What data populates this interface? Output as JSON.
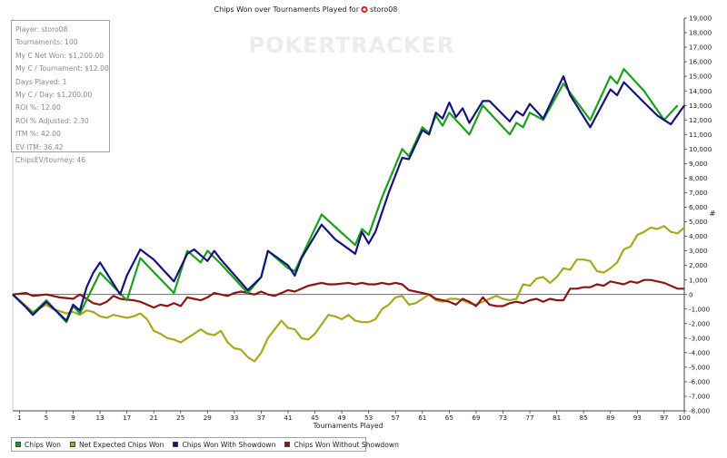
{
  "chart_data": {
    "type": "line",
    "title": "Chips Won over Tournaments Played for",
    "player_name": "storo08",
    "watermark": "POKERTRACKER",
    "xlabel": "Tournaments Played",
    "ylabel": "#",
    "x_ticks": [
      "1",
      "5",
      "9",
      "13",
      "17",
      "21",
      "25",
      "29",
      "33",
      "37",
      "41",
      "45",
      "49",
      "53",
      "57",
      "61",
      "65",
      "69",
      "73",
      "77",
      "81",
      "85",
      "89",
      "93",
      "97",
      "100"
    ],
    "y_ticks": [
      "19,000",
      "18,000",
      "17,000",
      "16,000",
      "15,000",
      "14,000",
      "13,000",
      "12,000",
      "11,000",
      "10,000",
      "9,000",
      "8,000",
      "7,000",
      "6,000",
      "5,000",
      "4,000",
      "3,000",
      "2,000",
      "1,000",
      "0",
      "-1,000",
      "-2,000",
      "-3,000",
      "-4,000",
      "-5,000",
      "-6,000",
      "-7,000",
      "-8,000"
    ],
    "xlim": [
      0,
      100
    ],
    "ylim": [
      -8000,
      19000
    ],
    "grid": false,
    "legend_position": "bottom-left",
    "series": [
      {
        "name": "Chips Won",
        "color": "#1aa01a",
        "points": [
          [
            0,
            0
          ],
          [
            3,
            -1300
          ],
          [
            5,
            -400
          ],
          [
            8,
            -1900
          ],
          [
            9,
            -800
          ],
          [
            10,
            -1300
          ],
          [
            13,
            1500
          ],
          [
            17,
            -400
          ],
          [
            19,
            2500
          ],
          [
            24,
            100
          ],
          [
            26,
            3000
          ],
          [
            28,
            2200
          ],
          [
            29,
            3000
          ],
          [
            31,
            2100
          ],
          [
            35,
            100
          ],
          [
            37,
            1200
          ],
          [
            38,
            3000
          ],
          [
            41,
            1800
          ],
          [
            42,
            1600
          ],
          [
            46,
            5500
          ],
          [
            51,
            3400
          ],
          [
            52,
            4500
          ],
          [
            53,
            4100
          ],
          [
            55,
            6700
          ],
          [
            58,
            10000
          ],
          [
            59,
            9500
          ],
          [
            61,
            11500
          ],
          [
            62,
            11100
          ],
          [
            63,
            12300
          ],
          [
            64,
            11600
          ],
          [
            65,
            12500
          ],
          [
            66,
            12000
          ],
          [
            68,
            11000
          ],
          [
            70,
            13000
          ],
          [
            72,
            12000
          ],
          [
            74,
            11000
          ],
          [
            75,
            11800
          ],
          [
            76,
            11500
          ],
          [
            77,
            12500
          ],
          [
            79,
            12000
          ],
          [
            82,
            14500
          ],
          [
            86,
            12000
          ],
          [
            89,
            15000
          ],
          [
            90,
            14500
          ],
          [
            91,
            15500
          ],
          [
            94,
            14000
          ],
          [
            97,
            12000
          ],
          [
            99,
            13000
          ]
        ]
      },
      {
        "name": "Net Expected Chips Won",
        "color": "#a8a81e",
        "points": [
          [
            0,
            0
          ],
          [
            2,
            -800
          ],
          [
            3,
            -1200
          ],
          [
            5,
            -700
          ],
          [
            6,
            -1000
          ],
          [
            8,
            -1300
          ],
          [
            9,
            -1200
          ],
          [
            10,
            -1400
          ],
          [
            11,
            -1100
          ],
          [
            12,
            -1200
          ],
          [
            13,
            -1500
          ],
          [
            14,
            -1600
          ],
          [
            15,
            -1400
          ],
          [
            17,
            -1600
          ],
          [
            18,
            -1500
          ],
          [
            19,
            -1300
          ],
          [
            20,
            -1700
          ],
          [
            21,
            -2500
          ],
          [
            22,
            -2700
          ],
          [
            23,
            -3000
          ],
          [
            24,
            -3100
          ],
          [
            25,
            -3300
          ],
          [
            27,
            -2700
          ],
          [
            28,
            -2400
          ],
          [
            29,
            -2700
          ],
          [
            30,
            -2800
          ],
          [
            31,
            -2500
          ],
          [
            32,
            -3300
          ],
          [
            33,
            -3700
          ],
          [
            34,
            -3800
          ],
          [
            35,
            -4300
          ],
          [
            36,
            -4600
          ],
          [
            37,
            -4000
          ],
          [
            38,
            -3000
          ],
          [
            39,
            -2400
          ],
          [
            40,
            -1800
          ],
          [
            41,
            -2300
          ],
          [
            42,
            -2400
          ],
          [
            43,
            -3000
          ],
          [
            44,
            -3100
          ],
          [
            45,
            -2700
          ],
          [
            47,
            -1400
          ],
          [
            48,
            -1500
          ],
          [
            49,
            -1700
          ],
          [
            50,
            -1400
          ],
          [
            51,
            -1800
          ],
          [
            52,
            -1900
          ],
          [
            53,
            -1900
          ],
          [
            54,
            -1700
          ],
          [
            55,
            -1000
          ],
          [
            56,
            -700
          ],
          [
            57,
            -200
          ],
          [
            58,
            -100
          ],
          [
            59,
            -700
          ],
          [
            60,
            -600
          ],
          [
            61,
            -300
          ],
          [
            62,
            0
          ],
          [
            63,
            -400
          ],
          [
            64,
            -500
          ],
          [
            65,
            -300
          ],
          [
            66,
            -300
          ],
          [
            67,
            -400
          ],
          [
            68,
            -600
          ],
          [
            69,
            -700
          ],
          [
            70,
            -500
          ],
          [
            71,
            -300
          ],
          [
            72,
            -100
          ],
          [
            73,
            -300
          ],
          [
            74,
            -400
          ],
          [
            75,
            -300
          ],
          [
            76,
            700
          ],
          [
            77,
            600
          ],
          [
            78,
            1100
          ],
          [
            79,
            1200
          ],
          [
            80,
            800
          ],
          [
            81,
            1200
          ],
          [
            82,
            1800
          ],
          [
            83,
            1700
          ],
          [
            84,
            2400
          ],
          [
            85,
            2400
          ],
          [
            86,
            2300
          ],
          [
            87,
            1600
          ],
          [
            88,
            1500
          ],
          [
            89,
            1800
          ],
          [
            90,
            2200
          ],
          [
            91,
            3100
          ],
          [
            92,
            3300
          ],
          [
            93,
            4100
          ],
          [
            94,
            4300
          ],
          [
            95,
            4600
          ],
          [
            96,
            4500
          ],
          [
            97,
            4700
          ],
          [
            98,
            4300
          ],
          [
            99,
            4200
          ],
          [
            100,
            4600
          ]
        ]
      },
      {
        "name": "Chips Won With Showdown",
        "color": "#14147a",
        "points": [
          [
            0,
            0
          ],
          [
            2,
            -900
          ],
          [
            3,
            -1400
          ],
          [
            5,
            -500
          ],
          [
            8,
            -1800
          ],
          [
            9,
            -700
          ],
          [
            10,
            -1100
          ],
          [
            11,
            500
          ],
          [
            12,
            1500
          ],
          [
            13,
            2200
          ],
          [
            16,
            0
          ],
          [
            17,
            1300
          ],
          [
            19,
            3100
          ],
          [
            21,
            2400
          ],
          [
            23,
            1400
          ],
          [
            24,
            900
          ],
          [
            26,
            2800
          ],
          [
            27,
            3100
          ],
          [
            29,
            2300
          ],
          [
            30,
            3000
          ],
          [
            31,
            2400
          ],
          [
            35,
            300
          ],
          [
            37,
            1200
          ],
          [
            38,
            3000
          ],
          [
            41,
            2000
          ],
          [
            42,
            1300
          ],
          [
            43,
            2500
          ],
          [
            46,
            4800
          ],
          [
            48,
            3800
          ],
          [
            51,
            2800
          ],
          [
            52,
            4300
          ],
          [
            53,
            3500
          ],
          [
            54,
            4300
          ],
          [
            56,
            7000
          ],
          [
            58,
            9400
          ],
          [
            59,
            9300
          ],
          [
            61,
            11300
          ],
          [
            62,
            11000
          ],
          [
            63,
            12500
          ],
          [
            64,
            12100
          ],
          [
            65,
            13200
          ],
          [
            66,
            12200
          ],
          [
            67,
            12800
          ],
          [
            68,
            11800
          ],
          [
            70,
            13300
          ],
          [
            71,
            13300
          ],
          [
            74,
            11900
          ],
          [
            75,
            12600
          ],
          [
            76,
            12300
          ],
          [
            77,
            13100
          ],
          [
            79,
            12100
          ],
          [
            82,
            15000
          ],
          [
            83,
            13700
          ],
          [
            86,
            11500
          ],
          [
            89,
            14100
          ],
          [
            90,
            13700
          ],
          [
            91,
            14600
          ],
          [
            94,
            13200
          ],
          [
            96,
            12300
          ],
          [
            98,
            11700
          ],
          [
            100,
            13000
          ]
        ]
      },
      {
        "name": "Chips Won Without Showdown",
        "color": "#8c1414",
        "points": [
          [
            0,
            0
          ],
          [
            2,
            100
          ],
          [
            3,
            -100
          ],
          [
            5,
            0
          ],
          [
            7,
            -200
          ],
          [
            9,
            -300
          ],
          [
            10,
            0
          ],
          [
            11,
            -300
          ],
          [
            12,
            -600
          ],
          [
            13,
            -700
          ],
          [
            14,
            -500
          ],
          [
            15,
            -100
          ],
          [
            16,
            -300
          ],
          [
            18,
            -400
          ],
          [
            19,
            -500
          ],
          [
            20,
            -700
          ],
          [
            21,
            -900
          ],
          [
            22,
            -700
          ],
          [
            23,
            -800
          ],
          [
            24,
            -600
          ],
          [
            25,
            -800
          ],
          [
            26,
            -200
          ],
          [
            27,
            -300
          ],
          [
            28,
            -400
          ],
          [
            29,
            -200
          ],
          [
            30,
            100
          ],
          [
            31,
            0
          ],
          [
            32,
            -100
          ],
          [
            33,
            100
          ],
          [
            34,
            200
          ],
          [
            35,
            100
          ],
          [
            36,
            0
          ],
          [
            37,
            200
          ],
          [
            38,
            0
          ],
          [
            39,
            -100
          ],
          [
            40,
            100
          ],
          [
            41,
            300
          ],
          [
            42,
            200
          ],
          [
            43,
            400
          ],
          [
            44,
            600
          ],
          [
            45,
            700
          ],
          [
            46,
            800
          ],
          [
            47,
            700
          ],
          [
            48,
            700
          ],
          [
            50,
            800
          ],
          [
            51,
            700
          ],
          [
            52,
            800
          ],
          [
            53,
            700
          ],
          [
            54,
            700
          ],
          [
            55,
            800
          ],
          [
            56,
            700
          ],
          [
            57,
            800
          ],
          [
            58,
            700
          ],
          [
            59,
            300
          ],
          [
            60,
            200
          ],
          [
            61,
            100
          ],
          [
            62,
            0
          ],
          [
            63,
            -300
          ],
          [
            64,
            -400
          ],
          [
            65,
            -500
          ],
          [
            66,
            -700
          ],
          [
            67,
            -300
          ],
          [
            68,
            -500
          ],
          [
            69,
            -800
          ],
          [
            70,
            -200
          ],
          [
            71,
            -700
          ],
          [
            72,
            -800
          ],
          [
            73,
            -800
          ],
          [
            74,
            -600
          ],
          [
            75,
            -500
          ],
          [
            76,
            -600
          ],
          [
            77,
            -400
          ],
          [
            78,
            -300
          ],
          [
            79,
            -500
          ],
          [
            80,
            -300
          ],
          [
            81,
            -400
          ],
          [
            82,
            -400
          ],
          [
            83,
            400
          ],
          [
            84,
            400
          ],
          [
            85,
            500
          ],
          [
            86,
            500
          ],
          [
            87,
            700
          ],
          [
            88,
            600
          ],
          [
            89,
            900
          ],
          [
            90,
            800
          ],
          [
            91,
            700
          ],
          [
            92,
            900
          ],
          [
            93,
            800
          ],
          [
            94,
            1000
          ],
          [
            95,
            1000
          ],
          [
            96,
            900
          ],
          [
            97,
            800
          ],
          [
            98,
            600
          ],
          [
            99,
            400
          ],
          [
            100,
            400
          ]
        ]
      }
    ]
  },
  "stats_box": {
    "lines": [
      "Player: storo08",
      "Tournaments: 100",
      "My C Net Won: $1,200.00",
      "My C / Tournament: $12.00",
      "Days Played: 1",
      "My C / Day: $1,200.00",
      "ROI %: 12.00",
      "ROI % Adjusted: 2.30",
      "ITM %: 42.00",
      "EV ITM: 36.42",
      "ChipsEV/tourney: 46"
    ]
  },
  "legend": {
    "items": [
      {
        "label": "Chips Won",
        "color": "#1aa01a"
      },
      {
        "label": "Net Expected Chips Won",
        "color": "#a8a81e"
      },
      {
        "label": "Chips Won With Showdown",
        "color": "#14147a"
      },
      {
        "label": "Chips Won Without Showdown",
        "color": "#8c1414"
      }
    ]
  }
}
